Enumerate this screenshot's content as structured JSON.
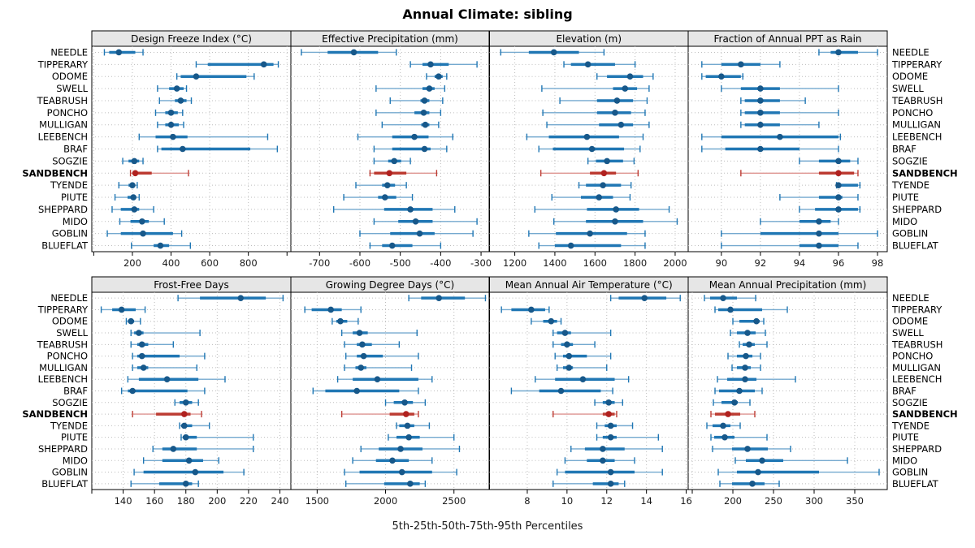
{
  "title": "Annual Climate: sibling",
  "caption": "5th-25th-50th-75th-95th Percentiles",
  "colors": {
    "normal_whisker": "#74A9CF",
    "normal_box": "#2077B4",
    "normal_median": "#17588A",
    "highlight_whisker": "#DE9490",
    "highlight_box": "#BC3B32",
    "highlight_median": "#B0211F",
    "grid": "#BDBDBD",
    "strip_bg": "#E6E6E6",
    "panel_border": "#000000",
    "tick_label": "#1a1a1a"
  },
  "chart_data": {
    "type": "dotplot-interval-grid",
    "grid": true,
    "legend": "none",
    "percentiles": [
      5,
      25,
      50,
      75,
      95
    ],
    "highlight_site": "SANDBENCH",
    "sites": [
      "NEEDLE",
      "TIPPERARY",
      "ODOME",
      "SWELL",
      "TEABRUSH",
      "PONCHO",
      "MULLIGAN",
      "LEEBENCH",
      "BRAF",
      "SOGZIE",
      "SANDBENCH",
      "TYENDE",
      "PIUTE",
      "SHEPPARD",
      "MIDO",
      "GOBLIN",
      "BLUEFLAT"
    ],
    "panels": [
      {
        "title": "Design Freeze Index (°C)",
        "xlim": [
          -10,
          1020
        ],
        "ticks": [
          200,
          400,
          600,
          800
        ],
        "extra_ticks": [
          0,
          1000
        ],
        "values": [
          [
            55,
            80,
            130,
            215,
            255
          ],
          [
            530,
            590,
            880,
            930,
            955
          ],
          [
            430,
            450,
            530,
            790,
            830
          ],
          [
            330,
            390,
            430,
            465,
            480
          ],
          [
            340,
            420,
            450,
            480,
            505
          ],
          [
            320,
            370,
            400,
            435,
            460
          ],
          [
            330,
            370,
            400,
            440,
            465
          ],
          [
            235,
            320,
            410,
            485,
            900
          ],
          [
            330,
            350,
            460,
            810,
            950
          ],
          [
            150,
            180,
            210,
            235,
            255
          ],
          [
            190,
            200,
            215,
            300,
            490
          ],
          [
            130,
            180,
            200,
            215,
            225
          ],
          [
            110,
            175,
            205,
            220,
            235
          ],
          [
            95,
            140,
            210,
            235,
            310
          ],
          [
            135,
            190,
            250,
            285,
            365
          ],
          [
            70,
            140,
            255,
            410,
            455
          ],
          [
            195,
            310,
            345,
            390,
            500
          ]
        ]
      },
      {
        "title": "Effective Precipitation (mm)",
        "xlim": [
          -771,
          -280
        ],
        "ticks": [
          -700,
          -600,
          -500,
          -400,
          -300
        ],
        "extra_ticks": [],
        "values": [
          [
            -745,
            -680,
            -615,
            -555,
            -510
          ],
          [
            -475,
            -445,
            -425,
            -380,
            -310
          ],
          [
            -435,
            -415,
            -405,
            -395,
            -385
          ],
          [
            -560,
            -445,
            -428,
            -415,
            -390
          ],
          [
            -525,
            -450,
            -440,
            -428,
            -395
          ],
          [
            -560,
            -465,
            -442,
            -428,
            -400
          ],
          [
            -545,
            -448,
            -438,
            -428,
            -405
          ],
          [
            -605,
            -520,
            -465,
            -430,
            -370
          ],
          [
            -565,
            -520,
            -440,
            -425,
            -385
          ],
          [
            -565,
            -530,
            -515,
            -498,
            -475
          ],
          [
            -575,
            -565,
            -527,
            -485,
            -410
          ],
          [
            -610,
            -545,
            -532,
            -513,
            -485
          ],
          [
            -640,
            -555,
            -538,
            -510,
            -470
          ],
          [
            -665,
            -540,
            -475,
            -420,
            -365
          ],
          [
            -565,
            -505,
            -462,
            -420,
            -310
          ],
          [
            -600,
            -525,
            -452,
            -415,
            -320
          ],
          [
            -575,
            -545,
            -520,
            -470,
            -400
          ]
        ]
      },
      {
        "title": "Elevation (m)",
        "xlim": [
          1074,
          2065
        ],
        "ticks": [
          1200,
          1400,
          1600,
          1800,
          2000
        ],
        "extra_ticks": [],
        "values": [
          [
            1130,
            1270,
            1395,
            1520,
            1645
          ],
          [
            1445,
            1480,
            1565,
            1700,
            1800
          ],
          [
            1610,
            1660,
            1775,
            1840,
            1890
          ],
          [
            1335,
            1690,
            1750,
            1810,
            1870
          ],
          [
            1425,
            1610,
            1710,
            1790,
            1860
          ],
          [
            1340,
            1610,
            1700,
            1780,
            1850
          ],
          [
            1360,
            1620,
            1730,
            1790,
            1870
          ],
          [
            1260,
            1370,
            1560,
            1720,
            1840
          ],
          [
            1320,
            1390,
            1585,
            1745,
            1825
          ],
          [
            1565,
            1605,
            1660,
            1740,
            1795
          ],
          [
            1330,
            1575,
            1645,
            1705,
            1815
          ],
          [
            1520,
            1555,
            1640,
            1730,
            1780
          ],
          [
            1385,
            1530,
            1620,
            1690,
            1775
          ],
          [
            1300,
            1560,
            1705,
            1820,
            1970
          ],
          [
            1395,
            1555,
            1700,
            1840,
            2010
          ],
          [
            1270,
            1405,
            1575,
            1760,
            1850
          ],
          [
            1320,
            1400,
            1480,
            1730,
            1850
          ]
        ]
      },
      {
        "title": "Fraction of Annual PPT as Rain",
        "xlim": [
          88.3,
          98.5
        ],
        "ticks": [
          90,
          92,
          94,
          96,
          98
        ],
        "extra_ticks": [],
        "values": [
          [
            95,
            95.6,
            96,
            97,
            98
          ],
          [
            89,
            90,
            91,
            92,
            93
          ],
          [
            89,
            89.2,
            90,
            91,
            91.1
          ],
          [
            90,
            91,
            92,
            93,
            96
          ],
          [
            91,
            91.2,
            92,
            93,
            94.3
          ],
          [
            91,
            91.2,
            92,
            93,
            96
          ],
          [
            91,
            91.2,
            92,
            93,
            95
          ],
          [
            89,
            90,
            93,
            96,
            96.1
          ],
          [
            89,
            90.2,
            92,
            94,
            96
          ],
          [
            94,
            95,
            96,
            96.6,
            97
          ],
          [
            91,
            95,
            96,
            96.8,
            97
          ],
          [
            95.9,
            96,
            96,
            97,
            97.1
          ],
          [
            93,
            95,
            96,
            96.2,
            97
          ],
          [
            94,
            94.8,
            96,
            97,
            97.1
          ],
          [
            92,
            94,
            95,
            95.6,
            96
          ],
          [
            90,
            92,
            95,
            96,
            98
          ],
          [
            90,
            94,
            95,
            96,
            97
          ]
        ]
      },
      {
        "title": "Frost-Free Days",
        "xlim": [
          120,
          247
        ],
        "ticks": [
          140,
          160,
          180,
          200,
          220,
          240
        ],
        "extra_ticks": [
          120
        ],
        "values": [
          [
            175,
            189,
            215,
            231,
            242
          ],
          [
            126,
            133,
            139,
            148,
            154
          ],
          [
            142,
            143,
            145,
            147,
            151
          ],
          [
            145,
            147,
            150,
            153,
            189
          ],
          [
            145,
            149,
            152,
            156,
            172
          ],
          [
            146,
            149,
            152,
            176,
            192
          ],
          [
            146,
            149,
            153,
            156,
            187
          ],
          [
            143,
            150,
            168,
            188,
            205
          ],
          [
            139,
            143,
            146,
            181,
            192
          ],
          [
            173,
            176,
            180,
            184,
            188
          ],
          [
            146,
            161,
            179,
            183,
            190
          ],
          [
            176,
            177,
            179,
            184,
            195
          ],
          [
            177,
            178,
            180,
            187,
            223
          ],
          [
            159,
            165,
            172,
            187,
            223
          ],
          [
            153,
            165,
            182,
            191,
            201
          ],
          [
            147,
            153,
            186,
            204,
            217
          ],
          [
            145,
            163,
            180,
            184,
            188
          ]
        ]
      },
      {
        "title": "Growing Degree Days (°C)",
        "xlim": [
          1308,
          2757
        ],
        "ticks": [
          1500,
          2000,
          2500
        ],
        "extra_ticks": [],
        "values": [
          [
            2170,
            2260,
            2390,
            2580,
            2730
          ],
          [
            1410,
            1460,
            1600,
            1680,
            1820
          ],
          [
            1610,
            1640,
            1670,
            1720,
            1800
          ],
          [
            1680,
            1760,
            1810,
            1870,
            2230
          ],
          [
            1700,
            1790,
            1830,
            1900,
            2100
          ],
          [
            1710,
            1790,
            1840,
            1980,
            2240
          ],
          [
            1700,
            1780,
            1820,
            1860,
            2190
          ],
          [
            1650,
            1760,
            1940,
            2240,
            2340
          ],
          [
            1470,
            1560,
            1790,
            2100,
            2240
          ],
          [
            2000,
            2060,
            2140,
            2200,
            2290
          ],
          [
            1680,
            2030,
            2150,
            2210,
            2240
          ],
          [
            2080,
            2100,
            2160,
            2210,
            2320
          ],
          [
            2020,
            2080,
            2170,
            2250,
            2500
          ],
          [
            1820,
            1950,
            2110,
            2270,
            2540
          ],
          [
            1760,
            1930,
            2050,
            2170,
            2340
          ],
          [
            1700,
            1810,
            2120,
            2340,
            2520
          ],
          [
            1710,
            1990,
            2180,
            2250,
            2290
          ]
        ]
      },
      {
        "title": "Mean Annual Air Temperature (°C)",
        "xlim": [
          6.1,
          16.1
        ],
        "ticks": [
          8,
          10,
          12,
          14,
          16
        ],
        "extra_ticks": [],
        "values": [
          [
            12.2,
            12.6,
            13.9,
            15.0,
            15.7
          ],
          [
            6.7,
            7.2,
            8.2,
            8.9,
            9.1
          ],
          [
            8.2,
            8.8,
            9.2,
            9.5,
            9.7
          ],
          [
            9.3,
            9.5,
            9.9,
            10.2,
            12.2
          ],
          [
            9.3,
            9.7,
            10.0,
            10.3,
            11.4
          ],
          [
            9.4,
            9.8,
            10.1,
            11.0,
            12.2
          ],
          [
            9.5,
            9.8,
            10.1,
            10.3,
            12.0
          ],
          [
            8.4,
            9.4,
            10.8,
            12.4,
            13.1
          ],
          [
            7.2,
            8.6,
            9.7,
            11.7,
            12.3
          ],
          [
            11.4,
            11.8,
            12.1,
            12.4,
            12.8
          ],
          [
            9.3,
            11.8,
            12.1,
            12.4,
            12.5
          ],
          [
            11.5,
            11.9,
            12.2,
            12.5,
            13.3
          ],
          [
            11.5,
            11.8,
            12.2,
            12.5,
            14.6
          ],
          [
            10.2,
            10.9,
            11.8,
            12.9,
            14.8
          ],
          [
            9.9,
            11.0,
            11.8,
            12.4,
            13.4
          ],
          [
            9.5,
            9.9,
            12.2,
            13.4,
            14.8
          ],
          [
            9.3,
            11.3,
            12.2,
            12.6,
            12.9
          ]
        ]
      },
      {
        "title": "Mean Annual Precipitation (mm)",
        "xlim": [
          145,
          390
        ],
        "ticks": [
          200,
          250,
          300,
          350
        ],
        "extra_ticks": [
          150
        ],
        "values": [
          [
            165,
            172,
            188,
            205,
            228
          ],
          [
            178,
            182,
            197,
            236,
            267
          ],
          [
            200,
            208,
            229,
            233,
            238
          ],
          [
            197,
            205,
            218,
            228,
            240
          ],
          [
            208,
            212,
            220,
            227,
            242
          ],
          [
            194,
            205,
            216,
            224,
            234
          ],
          [
            199,
            205,
            215,
            222,
            234
          ],
          [
            181,
            193,
            215,
            229,
            277
          ],
          [
            178,
            183,
            208,
            227,
            236
          ],
          [
            176,
            186,
            202,
            206,
            221
          ],
          [
            173,
            178,
            194,
            209,
            227
          ],
          [
            168,
            175,
            188,
            197,
            209
          ],
          [
            173,
            177,
            190,
            202,
            242
          ],
          [
            175,
            199,
            218,
            243,
            271
          ],
          [
            203,
            216,
            236,
            262,
            341
          ],
          [
            182,
            205,
            231,
            306,
            380
          ],
          [
            184,
            199,
            224,
            239,
            257
          ]
        ]
      }
    ]
  }
}
